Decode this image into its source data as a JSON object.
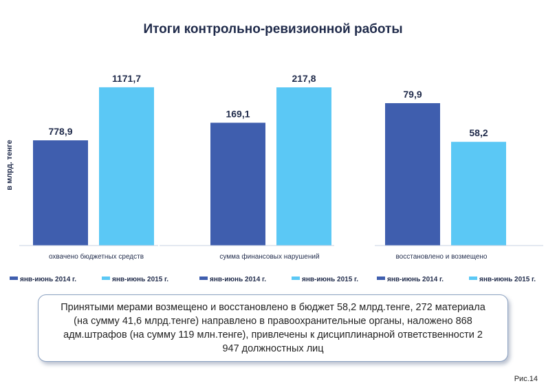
{
  "page": {
    "title": "Итоги контрольно-ревизионной работы",
    "figure_label": "Рис.14",
    "note": "Принятыми мерами возмещено и восстановлено в бюджет 58,2 млрд.тенге, 272 материала (на сумму 41,6 млрд.тенге) направлено в правоохранительные органы, наложено 868 адм.штрафов (на сумму 119 млн.тенге), привлечены к дисциплинарной ответственности 2 947 должностных лиц"
  },
  "chart_data": [
    {
      "type": "bar",
      "title": "охвачено бюджетных средств",
      "ylabel": "в млрд. тенге",
      "categories": [
        "охвачено бюджетных средств"
      ],
      "series": [
        {
          "name": "янв-июнь 2014 г.",
          "values": [
            778.9
          ],
          "labels": [
            "778,9"
          ],
          "color": "#3f5eae"
        },
        {
          "name": "янв-июнь 2015 г.",
          "values": [
            1171.7
          ],
          "labels": [
            "1171,7"
          ],
          "color": "#5bc8f5"
        }
      ],
      "legend": "bottom"
    },
    {
      "type": "bar",
      "title": "сумма финансовых нарушений",
      "categories": [
        "сумма финансовых нарушений"
      ],
      "series": [
        {
          "name": "янв-июнь 2014 г.",
          "values": [
            169.1
          ],
          "labels": [
            "169,1"
          ],
          "color": "#3f5eae"
        },
        {
          "name": "янв-июнь 2015 г.",
          "values": [
            217.8
          ],
          "labels": [
            "217,8"
          ],
          "color": "#5bc8f5"
        }
      ],
      "legend": "bottom"
    },
    {
      "type": "bar",
      "title": "восстановлено и возмещено",
      "categories": [
        "восстановлено и возмещено"
      ],
      "series": [
        {
          "name": "янв-июнь 2014 г.",
          "values": [
            79.9
          ],
          "labels": [
            "79,9"
          ],
          "color": "#3f5eae"
        },
        {
          "name": "янв-июнь 2015 г.",
          "values": [
            58.2
          ],
          "labels": [
            "58,2"
          ],
          "color": "#5bc8f5"
        }
      ],
      "legend": "bottom"
    }
  ]
}
